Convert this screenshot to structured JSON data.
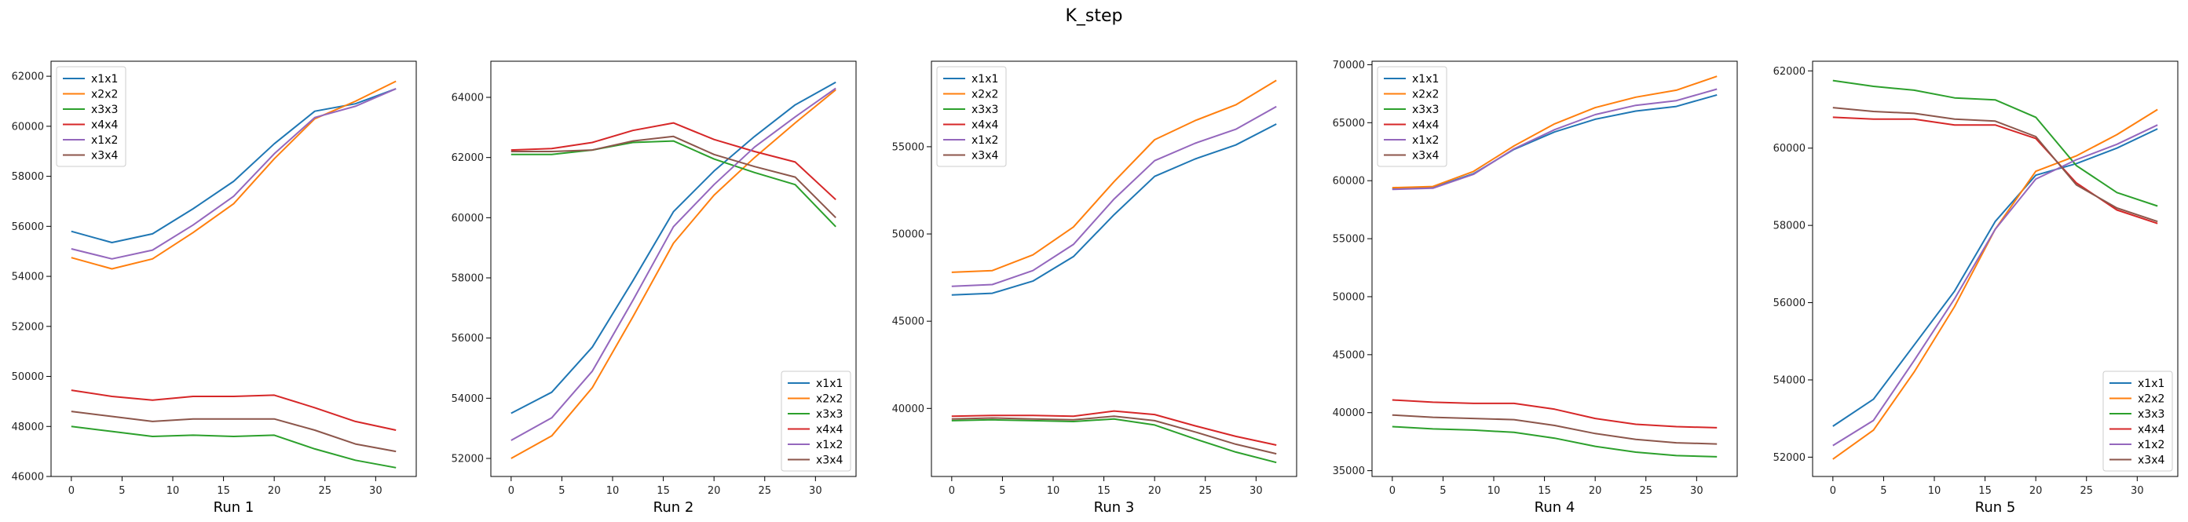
{
  "suptitle": "K_step",
  "series_colors": {
    "x1x1": "#1f77b4",
    "x2x2": "#ff7f0e",
    "x3x3": "#2ca02c",
    "x4x4": "#d62728",
    "x1x2": "#9467bd",
    "x3x4": "#8c564b"
  },
  "chart_data": [
    {
      "type": "line",
      "title": "",
      "xlabel": "Run 1",
      "ylabel": "",
      "x": [
        0,
        4,
        8,
        12,
        16,
        20,
        24,
        28,
        32
      ],
      "xlim": [
        -2,
        34
      ],
      "ylim": [
        46000,
        62600
      ],
      "xticks": [
        0,
        5,
        10,
        15,
        20,
        25,
        30
      ],
      "yticks": [
        46000,
        48000,
        50000,
        52000,
        54000,
        56000,
        58000,
        60000,
        62000
      ],
      "legend": "upper left",
      "series": [
        {
          "name": "x1x1",
          "values": [
            55800,
            55350,
            55700,
            56700,
            57800,
            59300,
            60600,
            60900,
            61500
          ]
        },
        {
          "name": "x2x2",
          "values": [
            54750,
            54300,
            54700,
            55750,
            56900,
            58700,
            60300,
            61000,
            61800
          ]
        },
        {
          "name": "x3x3",
          "values": [
            48000,
            47800,
            47600,
            47650,
            47600,
            47650,
            47100,
            46650,
            46350
          ]
        },
        {
          "name": "x4x4",
          "values": [
            49450,
            49200,
            49050,
            49200,
            49200,
            49250,
            48750,
            48200,
            47850
          ]
        },
        {
          "name": "x1x2",
          "values": [
            55100,
            54700,
            55050,
            56050,
            57200,
            58900,
            60350,
            60800,
            61500
          ]
        },
        {
          "name": "x3x4",
          "values": [
            48600,
            48400,
            48200,
            48300,
            48300,
            48300,
            47850,
            47300,
            47000
          ]
        }
      ]
    },
    {
      "type": "line",
      "title": "",
      "xlabel": "Run 2",
      "ylabel": "",
      "x": [
        0,
        4,
        8,
        12,
        16,
        20,
        24,
        28,
        32
      ],
      "xlim": [
        -2,
        34
      ],
      "ylim": [
        51400,
        65200
      ],
      "xticks": [
        0,
        5,
        10,
        15,
        20,
        25,
        30
      ],
      "yticks": [
        52000,
        54000,
        56000,
        58000,
        60000,
        62000,
        64000
      ],
      "legend": "lower right",
      "series": [
        {
          "name": "x1x1",
          "values": [
            53500,
            54200,
            55700,
            57900,
            60200,
            61550,
            62700,
            63750,
            64500
          ]
        },
        {
          "name": "x2x2",
          "values": [
            52000,
            52750,
            54350,
            56700,
            59150,
            60750,
            62000,
            63150,
            64250
          ]
        },
        {
          "name": "x3x3",
          "values": [
            62100,
            62100,
            62250,
            62500,
            62550,
            61950,
            61500,
            61100,
            59700
          ]
        },
        {
          "name": "x4x4",
          "values": [
            62250,
            62300,
            62500,
            62900,
            63150,
            62600,
            62200,
            61850,
            60600
          ]
        },
        {
          "name": "x1x2",
          "values": [
            52600,
            53350,
            54900,
            57250,
            59700,
            61100,
            62350,
            63350,
            64300
          ]
        },
        {
          "name": "x3x4",
          "values": [
            62200,
            62200,
            62250,
            62550,
            62700,
            62100,
            61700,
            61350,
            60000
          ]
        }
      ]
    },
    {
      "type": "line",
      "title": "",
      "xlabel": "Run 3",
      "ylabel": "",
      "x": [
        0,
        4,
        8,
        12,
        16,
        20,
        24,
        28,
        32
      ],
      "xlim": [
        -2,
        34
      ],
      "ylim": [
        36100,
        59900
      ],
      "xticks": [
        0,
        5,
        10,
        15,
        20,
        25,
        30
      ],
      "yticks": [
        40000,
        45000,
        50000,
        55000
      ],
      "legend": "upper left",
      "series": [
        {
          "name": "x1x1",
          "values": [
            46500,
            46600,
            47300,
            48700,
            51100,
            53300,
            54300,
            55100,
            56300
          ]
        },
        {
          "name": "x2x2",
          "values": [
            47800,
            47900,
            48800,
            50400,
            53000,
            55400,
            56500,
            57400,
            58800
          ]
        },
        {
          "name": "x3x3",
          "values": [
            39300,
            39350,
            39300,
            39250,
            39400,
            39050,
            38250,
            37500,
            36900
          ]
        },
        {
          "name": "x4x4",
          "values": [
            39550,
            39600,
            39600,
            39550,
            39850,
            39650,
            39000,
            38400,
            37900
          ]
        },
        {
          "name": "x1x2",
          "values": [
            47000,
            47100,
            47900,
            49400,
            52000,
            54200,
            55200,
            56000,
            57300
          ]
        },
        {
          "name": "x3x4",
          "values": [
            39400,
            39450,
            39400,
            39350,
            39550,
            39300,
            38650,
            37950,
            37400
          ]
        }
      ]
    },
    {
      "type": "line",
      "title": "",
      "xlabel": "Run 4",
      "ylabel": "",
      "x": [
        0,
        4,
        8,
        12,
        16,
        20,
        24,
        28,
        32
      ],
      "xlim": [
        -2,
        34
      ],
      "ylim": [
        34500,
        70300
      ],
      "xticks": [
        0,
        5,
        10,
        15,
        20,
        25,
        30
      ],
      "yticks": [
        35000,
        40000,
        45000,
        50000,
        55000,
        60000,
        65000,
        70000
      ],
      "legend": "upper left",
      "series": [
        {
          "name": "x1x1",
          "values": [
            59300,
            59400,
            60600,
            62700,
            64200,
            65300,
            66000,
            66400,
            67400
          ]
        },
        {
          "name": "x2x2",
          "values": [
            59400,
            59500,
            60800,
            63000,
            64900,
            66300,
            67200,
            67800,
            69000
          ]
        },
        {
          "name": "x3x3",
          "values": [
            38800,
            38600,
            38500,
            38300,
            37800,
            37100,
            36600,
            36300,
            36200
          ]
        },
        {
          "name": "x4x4",
          "values": [
            41100,
            40900,
            40800,
            40800,
            40300,
            39500,
            39000,
            38800,
            38700
          ]
        },
        {
          "name": "x1x2",
          "values": [
            59250,
            59350,
            60550,
            62750,
            64400,
            65700,
            66500,
            66900,
            67900
          ]
        },
        {
          "name": "x3x4",
          "values": [
            39800,
            39600,
            39500,
            39400,
            38900,
            38200,
            37700,
            37400,
            37300
          ]
        }
      ]
    },
    {
      "type": "line",
      "title": "",
      "xlabel": "Run 5",
      "ylabel": "",
      "x": [
        0,
        4,
        8,
        12,
        16,
        20,
        24,
        28,
        32
      ],
      "xlim": [
        -2,
        34
      ],
      "ylim": [
        51500,
        62250
      ],
      "xticks": [
        0,
        5,
        10,
        15,
        20,
        25,
        30
      ],
      "yticks": [
        52000,
        54000,
        56000,
        58000,
        60000,
        62000
      ],
      "legend": "lower right",
      "series": [
        {
          "name": "x1x1",
          "values": [
            52800,
            53500,
            54900,
            56300,
            58100,
            59300,
            59600,
            60000,
            60500
          ]
        },
        {
          "name": "x2x2",
          "values": [
            51950,
            52700,
            54200,
            55900,
            57900,
            59400,
            59800,
            60350,
            61000
          ]
        },
        {
          "name": "x3x3",
          "values": [
            61750,
            61600,
            61500,
            61300,
            61250,
            60800,
            59550,
            58850,
            58500
          ]
        },
        {
          "name": "x4x4",
          "values": [
            60800,
            60750,
            60750,
            60600,
            60600,
            60250,
            59100,
            58400,
            58050
          ]
        },
        {
          "name": "x1x2",
          "values": [
            52300,
            52950,
            54500,
            56100,
            57900,
            59200,
            59700,
            60100,
            60600
          ]
        },
        {
          "name": "x3x4",
          "values": [
            61050,
            60950,
            60900,
            60750,
            60700,
            60300,
            59050,
            58450,
            58100
          ]
        }
      ]
    }
  ]
}
